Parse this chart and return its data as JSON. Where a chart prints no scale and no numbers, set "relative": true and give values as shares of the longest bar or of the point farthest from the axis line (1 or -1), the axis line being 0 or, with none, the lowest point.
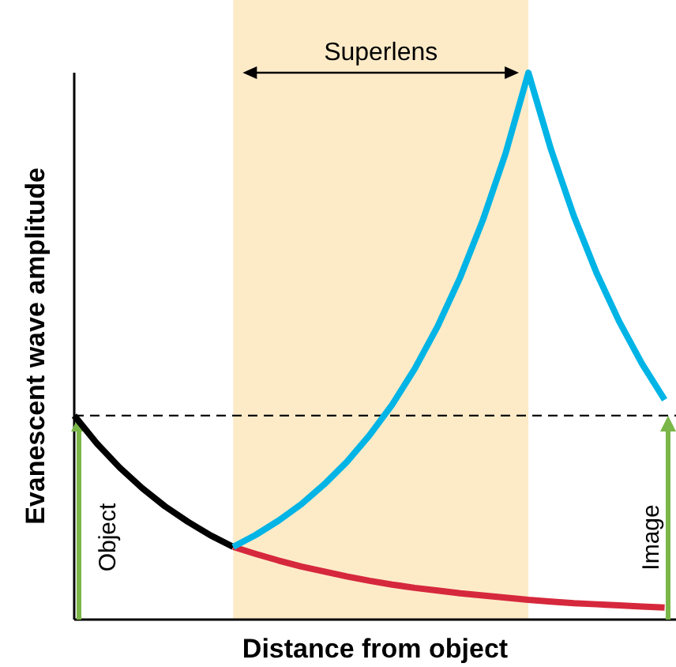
{
  "chart_data": {
    "type": "line",
    "relative": true,
    "xlabel": "Distance from object",
    "ylabel": "Evanescent wave amplitude",
    "marker": "none",
    "line_style": "solid",
    "categories": [
      null,
      null,
      null,
      null,
      null,
      null,
      null,
      null,
      null,
      null,
      null,
      null,
      null,
      null,
      null,
      null,
      null,
      null,
      null,
      null,
      null,
      null,
      null,
      null,
      null,
      null,
      null
    ],
    "series": [
      {
        "color": "#000000",
        "values": [
          0.373,
          0.322,
          0.278,
          0.24,
          0.207,
          0.179,
          0.154,
          0.133,
          null,
          null,
          null,
          null,
          null,
          null,
          null,
          null,
          null,
          null,
          null,
          null,
          null,
          null,
          null,
          null,
          null,
          null,
          null
        ]
      },
      {
        "color": "#d6283c",
        "values": [
          null,
          null,
          null,
          null,
          null,
          null,
          null,
          0.133,
          0.12,
          0.108,
          0.097,
          0.088,
          0.079,
          0.071,
          0.064,
          0.058,
          0.053,
          0.048,
          0.044,
          0.04,
          0.036,
          0.033,
          0.03,
          0.028,
          0.026,
          0.024,
          0.022
        ]
      },
      {
        "color": "#00b4e6",
        "values": [
          null,
          null,
          null,
          null,
          null,
          null,
          null,
          0.133,
          0.155,
          0.181,
          0.211,
          0.247,
          0.288,
          0.337,
          0.393,
          0.459,
          0.536,
          0.626,
          0.731,
          0.853,
          1.0,
          0.859,
          0.738,
          0.634,
          0.545,
          0.468,
          0.402
        ]
      }
    ],
    "ref_lines": [
      {
        "axis": "y",
        "value": 0.373,
        "color": "#000000",
        "line_style": "dashed"
      }
    ],
    "annotations": [
      "Superlens",
      "Object",
      "Image"
    ]
  }
}
